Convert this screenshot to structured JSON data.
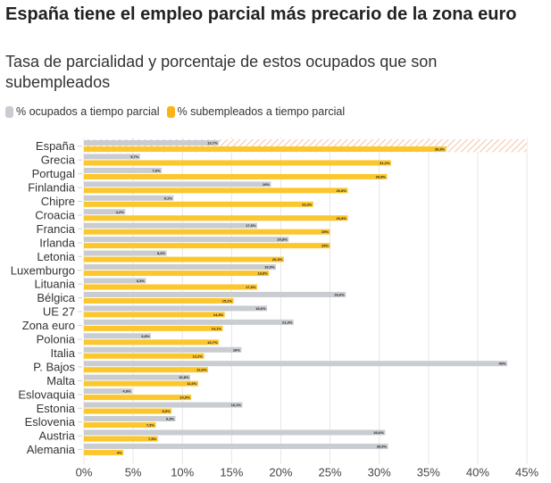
{
  "chart_data": {
    "type": "bar",
    "orientation": "horizontal",
    "title": "España tiene el empleo parcial más precario de la zona euro",
    "subtitle": "Tasa de parcialidad y porcentaje de estos ocupados que son subempleados",
    "xlabel": "",
    "ylabel": "",
    "xlim": [
      0,
      45
    ],
    "ticks": [
      0,
      5,
      10,
      15,
      20,
      25,
      30,
      35,
      40,
      45
    ],
    "tick_labels": [
      "0%",
      "5%",
      "10%",
      "15%",
      "20%",
      "25%",
      "30%",
      "35%",
      "40%",
      "45%"
    ],
    "grid": true,
    "legend_position": "top-left",
    "highlight_category": "España",
    "categories": [
      "España",
      "Grecia",
      "Portugal",
      "Finlandia",
      "Chipre",
      "Croacia",
      "Francia",
      "Irlanda",
      "Letonia",
      "Luxemburgo",
      "Lituania",
      "Bélgica",
      "UE 27",
      "Zona euro",
      "Polonia",
      "Italia",
      "P. Bajos",
      "Malta",
      "Eslovaquia",
      "Estonia",
      "Eslovenia",
      "Austria",
      "Alemania"
    ],
    "series": [
      {
        "name": "% ocupados a tiempo parcial",
        "color": "#c9ccd1",
        "values": [
          13.7,
          5.7,
          7.9,
          19,
          9.1,
          4.2,
          17.6,
          20.8,
          8.4,
          19.5,
          6.3,
          26.6,
          18.6,
          21.3,
          6.8,
          16,
          43,
          10.8,
          4.9,
          16.1,
          9.3,
          30.6,
          30.9
        ],
        "labels": [
          "13,7%",
          "5,7%",
          "7,9%",
          "19%",
          "9,1%",
          "4,2%",
          "17,6%",
          "20,8%",
          "8,4%",
          "19,5%",
          "6,3%",
          "26,6%",
          "18,6%",
          "21,3%",
          "6,8%",
          "16%",
          "43%",
          "10,8%",
          "4,9%",
          "16,1%",
          "9,3%",
          "30,6%",
          "30,9%"
        ]
      },
      {
        "name": "% subempleados a tiempo parcial",
        "color": "#fcc62d",
        "values": [
          36.8,
          31.2,
          30.8,
          26.8,
          23.3,
          26.8,
          25,
          25,
          20.3,
          18.8,
          17.6,
          15.2,
          14.3,
          14.1,
          13.7,
          12.2,
          12.6,
          11.6,
          10.9,
          8.9,
          7.3,
          7.5,
          4
        ],
        "labels": [
          "36,8%",
          "31,2%",
          "30,8%",
          "26,8%",
          "23,3%",
          "26,8%",
          "25%",
          "25%",
          "20,3%",
          "18,8%",
          "17,6%",
          "15,2%",
          "14,3%",
          "14,1%",
          "13,7%",
          "12,2%",
          "12,6%",
          "11,6%",
          "10,9%",
          "8,9%",
          "7,3%",
          "7,5%",
          "4%"
        ]
      }
    ]
  },
  "colors": {
    "highlight_hatch": "#f6c3a3",
    "grid": "#e6e6e6",
    "text": "#333333"
  }
}
